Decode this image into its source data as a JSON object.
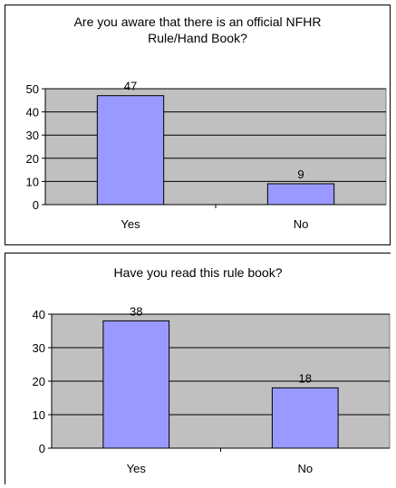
{
  "colors": {
    "bar_fill": "#9999ff",
    "plot_bg": "#c0c0c0",
    "bar_stroke": "#000000"
  },
  "chart_data": [
    {
      "type": "bar",
      "title": "Are you aware that there is an official NFHR\nRule/Hand Book?",
      "categories": [
        "Yes",
        "No"
      ],
      "values": [
        47,
        9
      ],
      "ylim": [
        0,
        50
      ],
      "yticks": [
        0,
        10,
        20,
        30,
        40,
        50
      ],
      "data_labels": true,
      "grid": true,
      "legend": "none"
    },
    {
      "type": "bar",
      "title": "Have you read this rule book?",
      "categories": [
        "Yes",
        "No"
      ],
      "values": [
        38,
        18
      ],
      "ylim": [
        0,
        40
      ],
      "yticks": [
        0,
        10,
        20,
        30,
        40
      ],
      "data_labels": true,
      "grid": true,
      "legend": "none"
    }
  ]
}
